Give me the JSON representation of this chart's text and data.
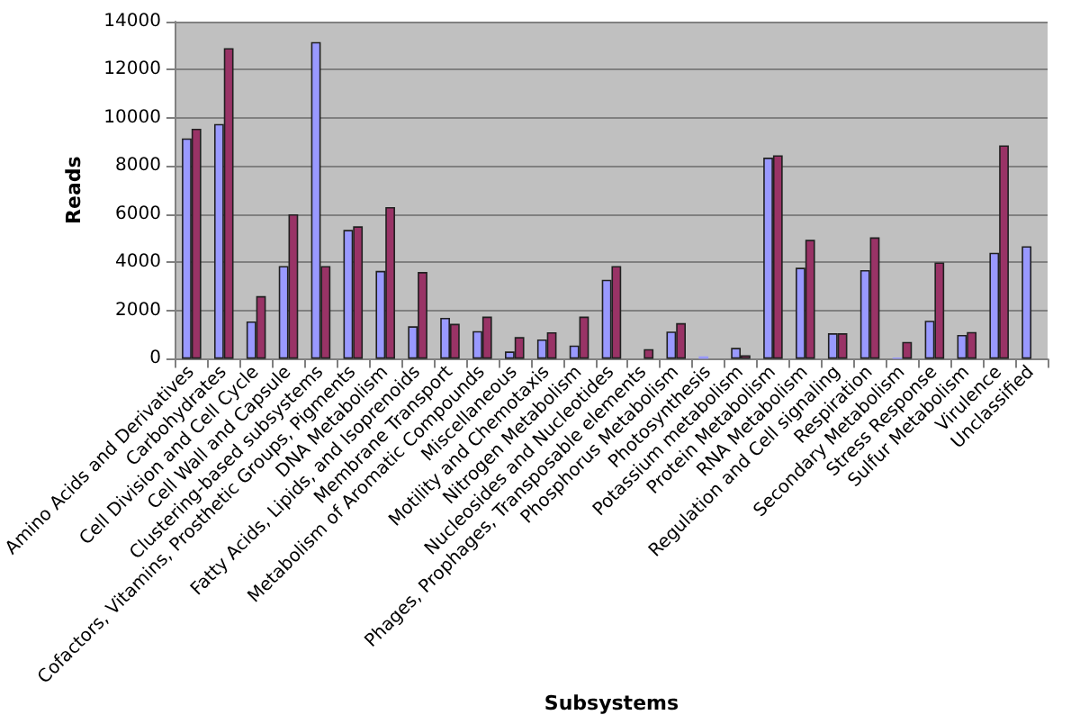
{
  "chart_data": {
    "type": "bar",
    "xlabel": "Subsystems",
    "ylabel": "Reads",
    "categories": [
      "Amino Acids and Derivatives",
      "Carbohydrates",
      "Cell Division and Cell Cycle",
      "Cell Wall and Capsule",
      "Clustering-based subsystems",
      "Cofactors, Vitamins, Prosthetic Groups, Pigments",
      "DNA Metabolism",
      "Fatty Acids, Lipids, and Isoprenoids",
      "Membrane Transport",
      "Metabolism of Aromatic Compounds",
      "Miscellaneous",
      "Motility and Chemotaxis",
      "Nitrogen Metabolism",
      "Nucleosides and Nucleotides",
      "Phages, Prophages, Transposable elements",
      "Phosphorus Metabolism",
      "Photosynthesis",
      "Potassium metabolism",
      "Protein Metabolism",
      "RNA Metabolism",
      "Regulation and Cell signaling",
      "Respiration",
      "Secondary Metabolism",
      "Stress Response",
      "Sulfur Metabolism",
      "Virulence",
      "Unclassified"
    ],
    "series": [
      {
        "color": "#9999ff",
        "values": [
          9150,
          9750,
          1550,
          3850,
          13150,
          5350,
          3650,
          1350,
          1700,
          1150,
          300,
          800,
          550,
          3280,
          null,
          1130,
          100,
          450,
          8350,
          3780,
          1060,
          3680,
          50,
          1580,
          990,
          4400,
          4670
        ]
      },
      {
        "color": "#993366",
        "values": [
          9550,
          12900,
          2600,
          6000,
          3850,
          5500,
          6300,
          3600,
          1450,
          1750,
          900,
          1100,
          1750,
          3850,
          400,
          1480,
          null,
          150,
          8450,
          4940,
          1060,
          5040,
          700,
          4000,
          1110,
          8860,
          null
        ]
      }
    ],
    "ylim": [
      0,
      14000
    ],
    "yticks": [
      0,
      2000,
      4000,
      6000,
      8000,
      10000,
      12000,
      14000
    ],
    "grid": "y"
  }
}
